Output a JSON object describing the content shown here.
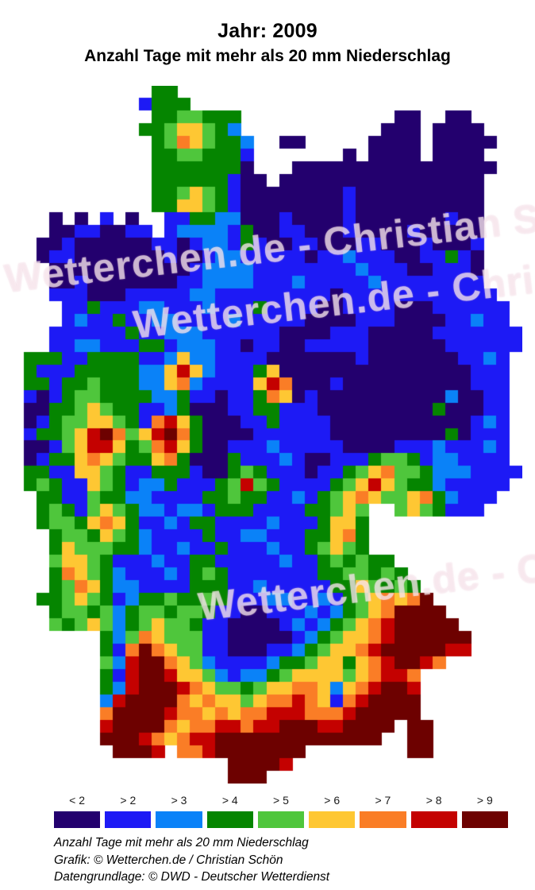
{
  "header": {
    "title": "Jahr: 2009",
    "subtitle": "Anzahl Tage mit mehr als 20 mm Niederschlag"
  },
  "watermark": {
    "text": "Wetterchen.de - Christian Schön"
  },
  "footer": {
    "line1": "Anzahl Tage mit mehr als 20 mm Niederschlag",
    "line2": "Grafik: © Wetterchen.de / Christian Schön",
    "line3": "Datengrundlage: © DWD - Deutscher Wetterdienst"
  },
  "chart_data": {
    "type": "heatmap",
    "title": "Jahr: 2009",
    "subtitle": "Anzahl Tage mit mehr als 20 mm Niederschlag",
    "region": "Deutschland",
    "unit": "Tage mit mehr als 20 mm Niederschlag",
    "legend_position": "bottom",
    "classes": [
      {
        "key": "a",
        "label": "< 2",
        "color": "#23006E"
      },
      {
        "key": "b",
        "label": "> 2",
        "color": "#1D1AF5"
      },
      {
        "key": "c",
        "label": "> 3",
        "color": "#0A82F8"
      },
      {
        "key": "d",
        "label": "> 4",
        "color": "#058500"
      },
      {
        "key": "e",
        "label": "> 5",
        "color": "#4FC63C"
      },
      {
        "key": "f",
        "label": "> 6",
        "color": "#FEC733"
      },
      {
        "key": "g",
        "label": "> 7",
        "color": "#FA7D26"
      },
      {
        "key": "h",
        "label": "> 8",
        "color": "#C40100"
      },
      {
        "key": "i",
        "label": "> 9",
        "color": "#6D0100"
      }
    ],
    "no_data_key": ".",
    "grid": {
      "cols": 40,
      "rows": 55,
      "cells": [
        "...........dd...........................",
        "..........bddd..........................",
        "...........ddeeddd............aa..aa....",
        "..........ddeffedc...........aaa.aaaa...",
        "...........degfeddc..aa.....aaaa.aaaaa..",
        "...........ddeedddb.......a.aaaa.aaaa...",
        "...........ddddddda...aaaaaaaaaaaaaaaa..",
        "...........ddddddbaa.aaaaaaaaaaaaaaaa...",
        "...........ddefedbaaaaaaaabaaaaaaaaaa...",
        "...........ddffedbaaaaaaaabaaaaaaaaaa...",
        "...a.a.b.a..bbddccaaabaaaabaaaaaaabaa...",
        "...aabbaabb.bccccbdaabbaaabaaaabaaaaa...",
        "..aabaaaaaabbabccbdbaabbaaabbaaabaaab...",
        "..abbaaaaaaabaabccbbbbbabbcbbbaabbdba...",
        "...aaaaaaaaaaabccccbbbbbbbbcbbbaabbba...",
        "...aabaaaaaaabbccccbbbcbbbbbcbbbbbbbb...",
        "...bbbaaabbbbbccbbbbbbbbbabbbbbbbbbbbb..",
        "....bbdbbbccbbbcbbbdbbbbaabbbbaaabbbbbb.",
        "....bcbbdbbccbbbbcbbbbbaaaabbbaaaabbcbb.",
        "...bbbbbbdbbcccbbbbbbaaaabbbaaaaabbbbbbb",
        "...bbccbbbddbcccbbabbaabbbbbaaaaaabbbbbb",
        ".dddbbddddbbcfccbbbbaaaaaaabaaaaaaabbcb.",
        ".dbbbdddddccfhfcbbbdfaaaaaaaaaaaaaaabbb.",
        ".ddbddedddccfgcbbbbfhgaaabaaaaaaaaaabbb.",
        ".babdeeddddccdbbabbdgfabaaaaaaaaaacaabb.",
        ".aaddefeddbbcdaaabbddbbbaaaaaaaaadaaabb.",
        ".abdeeffedbghfdaaabbdbbbbaaaaaaaaaaabcb.",
        ".bddefhigefhigdaaaabbbbbbaaaaaaaaadabbb.",
        ".aabefhhfdeghfdaabbbcbbbbbaaaabbbcbbbcb.",
        ".abddfgfeddfgdaaadbbbcbaabbbdeedbccbbbb.",
        ".ddbbffedbbdddbaadedbbbabbdefgeedcccbbbb",
        ".dedbbfedbccdbbbdehedbbbbdefhfeddcbbbbb.",
        "..ddbbeddccbbbbddeddbbcbdefgfeefgdcbbb..",
        "..dedbefedccbccbdddbbbbddefe..efedbbb...",
        "..deedfgfdbbcbddbbbbcbbbdffd............",
        "...deedfedcbbbbdbbccbbbddfgd............",
        "...dfeeeddcbbcbbdbbbcbbdefed............",
        "...effedbbbcbbddbbbbbcbbdededd..........",
        "...dgfedcbbbcbdedbbbbbbbddeeded.........",
        "...degfdccbbbbdddbbcbbbbbddfeded........",
        "..ddefedbcddeddedbbbccbbcbdefgfgi.......",
        "...deedecdeedeedbbaabbbcbcdefgiiii......",
        "...edefecdefeedbbaaaabcbcdefghiiiii.....",
        ".......dcegfeeebbaaaaabcdeffghiiiiii....",
        ".......dbgigfeebbaaabbcdeffghiiiiihh....",
        ".......echiigfecbbbbcddeffdfghiihg......",
        ".......dbhiihffecbccdeffffefghhg........",
        ".......dchiiihgfeedeffggfcfghiih........",
        ".......chiiiigfgffefgghgfbghiiii........",
        ".......giiiihggfgfgghhhggghiiiii........",
        ".......hiiiigfgghhghhiiihhiiii.ii.......",
        ".......iiihgfghhiiiiiiiiiiiii..ii.......",
        "........iiih.gghiiiiiii........ii.......",
        ".................iiiih..................",
        ".................iii...................."
      ]
    }
  }
}
